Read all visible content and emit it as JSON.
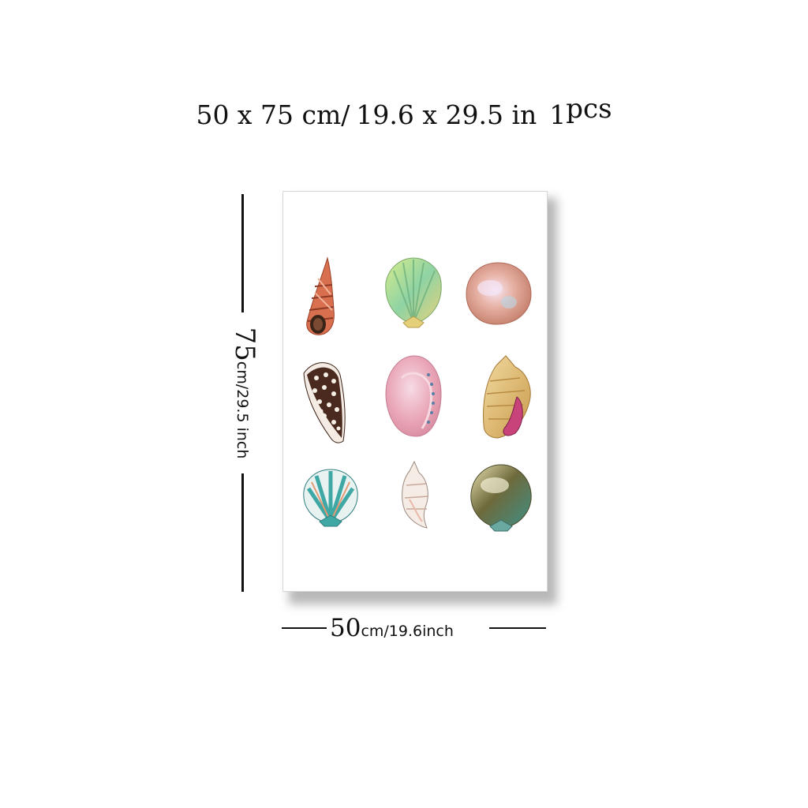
{
  "title": {
    "size_cm": "50 x 75 cm/",
    "size_in": "19.6  x  29.5 in",
    "qty_num": "1",
    "qty_unit": "pcs"
  },
  "height_dimension": {
    "value": "75",
    "unit_text": "cm/29.5 inch"
  },
  "width_dimension": {
    "value": "50",
    "unit_text": "cm/19.6inch"
  },
  "artwork": {
    "shells": [
      {
        "name": "spiral-orange-shell",
        "color": "#d8704f"
      },
      {
        "name": "green-scallop-shell",
        "color": "#9fd08a"
      },
      {
        "name": "pink-pearl-clam-shell",
        "color": "#e9b09b"
      },
      {
        "name": "brown-cone-shell",
        "color": "#4a2a1e"
      },
      {
        "name": "pink-abalone-shell",
        "color": "#e9a9b6"
      },
      {
        "name": "golden-conch-shell",
        "color": "#d9b46a"
      },
      {
        "name": "teal-scallop-shell",
        "color": "#3fa7a4"
      },
      {
        "name": "white-whelk-shell",
        "color": "#e8d6cc"
      },
      {
        "name": "olive-scallop-shell",
        "color": "#8a8258"
      }
    ]
  }
}
